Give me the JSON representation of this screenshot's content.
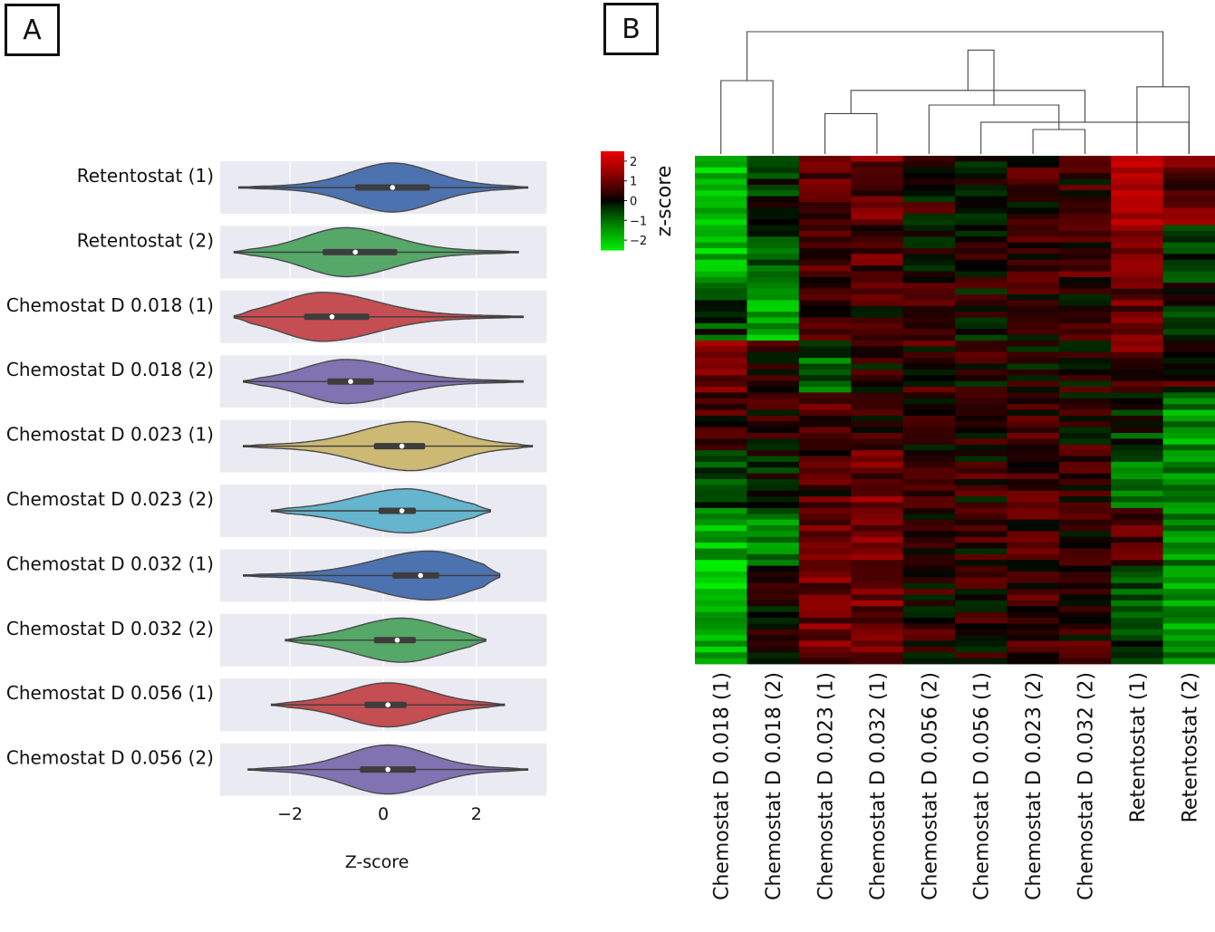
{
  "panels": {
    "a_label": "A",
    "b_label": "B"
  },
  "chart_data": [
    {
      "type": "violin",
      "panel": "A",
      "title": "",
      "xlabel": "Z-score",
      "ylabel": "",
      "xlim": [
        -3.5,
        3.5
      ],
      "xticks": [
        -2,
        0,
        2
      ],
      "xtick_labels": [
        "−2",
        "0",
        "2"
      ],
      "grid": true,
      "series": [
        {
          "name": "Retentostat (1)",
          "color": "#4c72b0",
          "median": 0.2,
          "q1": -0.6,
          "q3": 1.0,
          "min": -3.1,
          "max": 3.1,
          "mode": 0.2,
          "width": 1.0,
          "skew": 0
        },
        {
          "name": "Retentostat (2)",
          "color": "#55a868",
          "median": -0.6,
          "q1": -1.3,
          "q3": 0.3,
          "min": -3.2,
          "max": 2.9,
          "mode": -0.8,
          "width": 1.0,
          "skew": 0.6
        },
        {
          "name": "Chemostat D 0.018 (1)",
          "color": "#c44e52",
          "median": -1.1,
          "q1": -1.7,
          "q3": -0.3,
          "min": -3.2,
          "max": 3.0,
          "mode": -1.3,
          "width": 1.0,
          "skew": 1.2
        },
        {
          "name": "Chemostat D 0.018 (2)",
          "color": "#8172b2",
          "median": -0.7,
          "q1": -1.2,
          "q3": -0.2,
          "min": -3.0,
          "max": 3.0,
          "mode": -0.8,
          "width": 0.9,
          "skew": 0.8
        },
        {
          "name": "Chemostat D 0.023 (1)",
          "color": "#ccb974",
          "median": 0.4,
          "q1": -0.2,
          "q3": 0.9,
          "min": -3.0,
          "max": 3.2,
          "mode": 0.6,
          "width": 1.0,
          "skew": -0.9
        },
        {
          "name": "Chemostat D 0.023 (2)",
          "color": "#64b5cd",
          "median": 0.4,
          "q1": -0.1,
          "q3": 0.7,
          "min": -2.4,
          "max": 2.3,
          "mode": 0.5,
          "width": 0.9,
          "skew": -0.9
        },
        {
          "name": "Chemostat D 0.032 (1)",
          "color": "#4c72b0",
          "median": 0.8,
          "q1": 0.2,
          "q3": 1.2,
          "min": -3.0,
          "max": 2.5,
          "mode": 1.0,
          "width": 1.0,
          "skew": -1.3
        },
        {
          "name": "Chemostat D 0.032 (2)",
          "color": "#55a868",
          "median": 0.3,
          "q1": -0.2,
          "q3": 0.7,
          "min": -2.1,
          "max": 2.2,
          "mode": 0.4,
          "width": 0.9,
          "skew": -0.4
        },
        {
          "name": "Chemostat D 0.056 (1)",
          "color": "#c44e52",
          "median": 0.1,
          "q1": -0.4,
          "q3": 0.5,
          "min": -2.4,
          "max": 2.6,
          "mode": 0.1,
          "width": 0.9,
          "skew": 0
        },
        {
          "name": "Chemostat D 0.056 (2)",
          "color": "#8172b2",
          "median": 0.1,
          "q1": -0.5,
          "q3": 0.7,
          "min": -2.9,
          "max": 3.1,
          "mode": 0.1,
          "width": 1.0,
          "skew": 0
        }
      ]
    },
    {
      "type": "heatmap",
      "panel": "B",
      "title": "",
      "colorbar_label": "z-score",
      "colorbar_ticks": [
        2,
        1,
        0,
        -1,
        -2
      ],
      "colorbar_tick_labels": [
        "2",
        "1",
        "0",
        "−1",
        "−2"
      ],
      "colorscale": [
        "#00ee00",
        "#000000",
        "#ee0000"
      ],
      "value_range": [
        -2.5,
        2.5
      ],
      "columns": [
        "Chemostat D 0.018 (1)",
        "Chemostat D 0.018 (2)",
        "Chemostat D 0.023 (1)",
        "Chemostat D 0.032 (1)",
        "Chemostat D 0.056 (2)",
        "Chemostat D 0.056 (1)",
        "Chemostat D 0.023 (2)",
        "Chemostat D 0.032 (2)",
        "Retentostat (1)",
        "Retentostat (2)"
      ],
      "row_segments": [
        {
          "rows": 12,
          "means": [
            -1.9,
            -0.4,
            0.8,
            0.9,
            0.2,
            -0.1,
            0.4,
            0.3,
            1.6,
            0.9
          ]
        },
        {
          "rows": 10,
          "means": [
            -1.9,
            -0.7,
            0.7,
            0.8,
            0.1,
            0.0,
            0.3,
            0.6,
            1.2,
            -0.7
          ]
        },
        {
          "rows": 10,
          "means": [
            -0.5,
            -1.8,
            0.5,
            0.4,
            0.6,
            0.1,
            0.3,
            0.2,
            1.0,
            -0.3
          ]
        },
        {
          "rows": 9,
          "means": [
            1.0,
            0.4,
            -0.8,
            0.2,
            0.4,
            0.2,
            0.1,
            0.2,
            0.8,
            0.4
          ]
        },
        {
          "rows": 10,
          "means": [
            0.4,
            0.3,
            0.6,
            0.5,
            0.3,
            0.4,
            0.4,
            0.3,
            -0.4,
            -1.4
          ]
        },
        {
          "rows": 10,
          "means": [
            -0.6,
            -0.2,
            0.6,
            1.0,
            0.2,
            0.3,
            0.5,
            0.4,
            -1.0,
            -1.3
          ]
        },
        {
          "rows": 10,
          "means": [
            -1.8,
            -1.2,
            0.8,
            1.2,
            0.3,
            0.3,
            0.5,
            0.3,
            0.6,
            -1.2
          ]
        },
        {
          "rows": 17,
          "means": [
            -1.9,
            0.0,
            1.0,
            1.1,
            0.3,
            0.3,
            0.6,
            0.4,
            -0.5,
            -1.4
          ]
        }
      ],
      "dendrogram_merges": [
        {
          "left": 7,
          "right": 8,
          "height": 0.2
        },
        {
          "left": 6,
          "right": 10,
          "height": 0.26
        },
        {
          "left": 3,
          "right": 4,
          "height": 0.33
        },
        {
          "left": 5,
          "right": 11,
          "height": 0.4
        },
        {
          "left": 12,
          "right": 13,
          "height": 0.52
        },
        {
          "left": 9,
          "right": 10,
          "height": 0.55
        },
        {
          "left": 1,
          "right": 2,
          "height": 0.6
        },
        {
          "left": 14,
          "right": 15,
          "height": 0.85
        },
        {
          "left": 16,
          "right": 17,
          "height": 1.0
        }
      ]
    }
  ]
}
